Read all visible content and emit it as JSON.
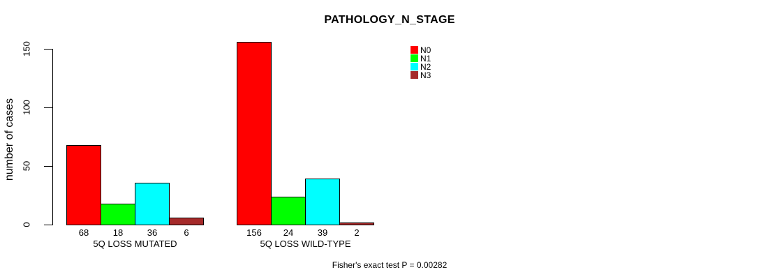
{
  "chart_data": {
    "type": "bar",
    "title": "PATHOLOGY_N_STAGE",
    "ylabel": "number of cases",
    "xlabel": "",
    "ylim": [
      0,
      150
    ],
    "yticks": [
      0,
      50,
      100,
      150
    ],
    "categories": [
      "5Q LOSS MUTATED",
      "5Q LOSS WILD-TYPE"
    ],
    "series": [
      {
        "name": "N0",
        "color": "#ff0000",
        "values": [
          68,
          156
        ]
      },
      {
        "name": "N1",
        "color": "#00ff00",
        "values": [
          18,
          24
        ]
      },
      {
        "name": "N2",
        "color": "#00ffff",
        "values": [
          36,
          39
        ]
      },
      {
        "name": "N3",
        "color": "#a52a2a",
        "values": [
          6,
          2
        ]
      }
    ],
    "value_labels": [
      [
        68,
        18,
        36,
        6
      ],
      [
        156,
        24,
        39,
        2
      ]
    ],
    "value_labels_shown": true,
    "legend_position": "top-right",
    "grid": false,
    "annotation": "Fisher's exact test P = 0.00282",
    "background_color": "#ffffff",
    "text_color": "#000000"
  }
}
